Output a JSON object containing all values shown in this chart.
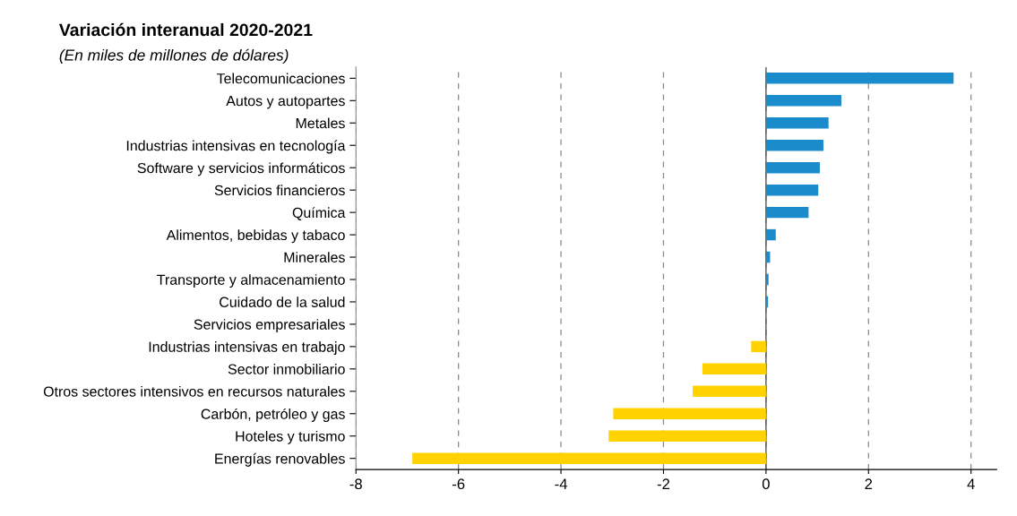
{
  "chart_data": {
    "type": "bar",
    "orientation": "horizontal",
    "title": "Variación interanual 2020-2021",
    "subtitle": "(En miles de millones de dólares)",
    "categories": [
      "Telecomunicaciones",
      "Autos y autopartes",
      "Metales",
      "Industrias intensivas en tecnología",
      "Software y servicios informáticos",
      "Servicios financieros",
      "Química",
      "Alimentos, bebidas y tabaco",
      "Minerales",
      "Transporte y almacenamiento",
      "Cuidado de la salud",
      "Servicios empresariales",
      "Industrias intensivas en trabajo",
      "Sector inmobiliario",
      "Otros sectores intensivos en recursos naturales",
      "Carbón, petróleo y gas",
      "Hoteles y turismo",
      "Energías renovables"
    ],
    "values": [
      3.66,
      1.47,
      1.22,
      1.12,
      1.05,
      1.02,
      0.83,
      0.19,
      0.08,
      0.05,
      0.04,
      null,
      -0.29,
      -1.24,
      -1.43,
      -2.98,
      -3.07,
      -6.9
    ],
    "colors": [
      "#1a8ccc",
      "#1a8ccc",
      "#1a8ccc",
      "#1a8ccc",
      "#1a8ccc",
      "#1a8ccc",
      "#1a8ccc",
      "#1a8ccc",
      "#1a8ccc",
      "#1a8ccc",
      "#1a8ccc",
      "#1a8ccc",
      "#ffd200",
      "#ffd200",
      "#ffd200",
      "#ffd200",
      "#ffd200",
      "#ffd200"
    ],
    "xlim": [
      -8,
      4.5
    ],
    "xticks": [
      -8,
      -6,
      -4,
      -2,
      0,
      2,
      4
    ],
    "grid": "x",
    "ref_lines": [
      {
        "axis": "x",
        "value": 0,
        "color": "#555555",
        "line_style": "solid"
      }
    ]
  }
}
